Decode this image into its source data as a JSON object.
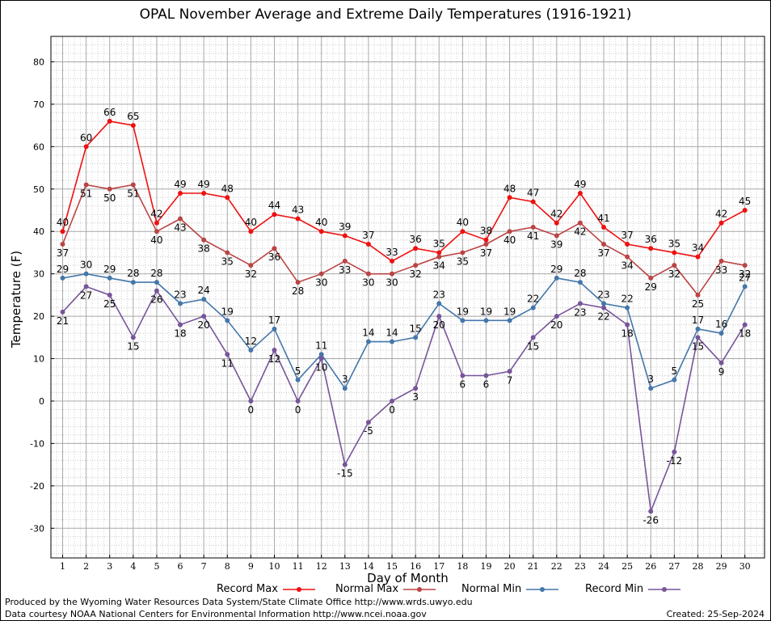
{
  "chart_data": {
    "type": "line",
    "title": "OPAL November Average and Extreme Daily Temperatures (1916-1921)",
    "xlabel": "Day of Month",
    "ylabel": "Temperature (F)",
    "x": [
      1,
      2,
      3,
      4,
      5,
      6,
      7,
      8,
      9,
      10,
      11,
      12,
      13,
      14,
      15,
      16,
      17,
      18,
      19,
      20,
      21,
      22,
      23,
      24,
      25,
      26,
      27,
      28,
      29,
      30
    ],
    "ylim": [
      -37,
      86
    ],
    "yticks": [
      -30,
      -20,
      -10,
      0,
      10,
      20,
      30,
      40,
      50,
      60,
      70,
      80
    ],
    "grid": true,
    "legend_position": "bottom",
    "series": [
      {
        "name": "Record Max",
        "color": "#ee1111",
        "labels": "above",
        "values": [
          40,
          60,
          66,
          65,
          42,
          49,
          49,
          48,
          40,
          44,
          43,
          40,
          39,
          37,
          33,
          36,
          35,
          40,
          38,
          48,
          47,
          42,
          49,
          41,
          37,
          36,
          35,
          34,
          42,
          45
        ]
      },
      {
        "name": "Normal Max",
        "color": "#bb4444",
        "labels": "below",
        "values": [
          37,
          51,
          50,
          51,
          40,
          43,
          38,
          35,
          32,
          36,
          28,
          30,
          33,
          30,
          30,
          32,
          34,
          35,
          37,
          40,
          41,
          39,
          42,
          37,
          34,
          29,
          32,
          25,
          33,
          32
        ]
      },
      {
        "name": "Normal Min",
        "color": "#4477aa",
        "labels": "above",
        "values": [
          29,
          30,
          29,
          28,
          28,
          23,
          24,
          19,
          12,
          17,
          5,
          11,
          3,
          14,
          14,
          15,
          23,
          19,
          19,
          19,
          22,
          29,
          28,
          23,
          22,
          3,
          5,
          17,
          16,
          27
        ]
      },
      {
        "name": "Record Min",
        "color": "#775599",
        "labels": "below",
        "values": [
          21,
          27,
          25,
          15,
          26,
          18,
          20,
          11,
          0,
          12,
          0,
          10,
          -15,
          -5,
          0,
          3,
          20,
          6,
          6,
          7,
          15,
          20,
          23,
          22,
          18,
          -26,
          -12,
          15,
          9,
          18
        ]
      }
    ]
  },
  "footer": {
    "produced_by": "Produced by the Wyoming Water Resources Data System/State Climate Office http://www.wrds.uwyo.edu",
    "data_courtesy": "Data courtesy NOAA National Centers for Environmental Information http://www.ncei.noaa.gov",
    "created": "Created: 25-Sep-2024"
  }
}
